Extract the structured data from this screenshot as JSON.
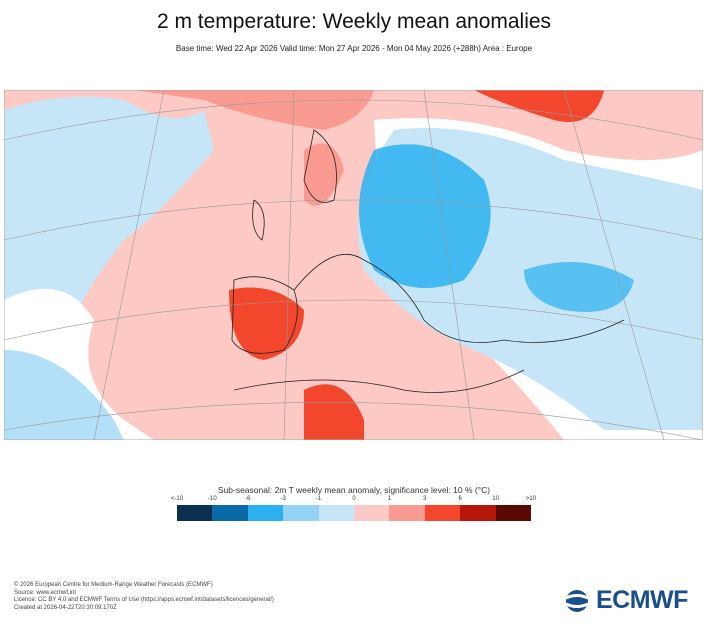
{
  "title": "2 m temperature: Weekly mean anomalies",
  "subtitle": "Base time: Wed 22 Apr 2026 Valid time: Mon 27 Apr 2026 - Mon 04 May 2026 (+288h) Area : Europe",
  "legend": {
    "title": "Sub-seasonal: 2m T weekly mean anomaly, significance level: 10 % (°C)",
    "ticks": [
      "<-10",
      "-10",
      "-6",
      "-3",
      "-1",
      "0",
      "1",
      "3",
      "6",
      "10",
      ">10"
    ],
    "colors": [
      "#0b2f4f",
      "#0a6aa8",
      "#2bb0f0",
      "#94d2f7",
      "#c6e6f8",
      "#fcc9c4",
      "#f99b90",
      "#f2472c",
      "#b51607",
      "#5a0a05"
    ]
  },
  "footer": {
    "lines": [
      "© 2026 European Centre for Medium-Range Weather Forecasts (ECMWF)",
      "Source: www.ecmwf.int",
      "Licence: CC BY 4.0 and ECMWF Terms of Use (https://apps.ecmwf.int/datasets/licences/general/)",
      "Created at 2026-04-22T20:30:09.170Z"
    ],
    "logo": "ECMWF"
  }
}
